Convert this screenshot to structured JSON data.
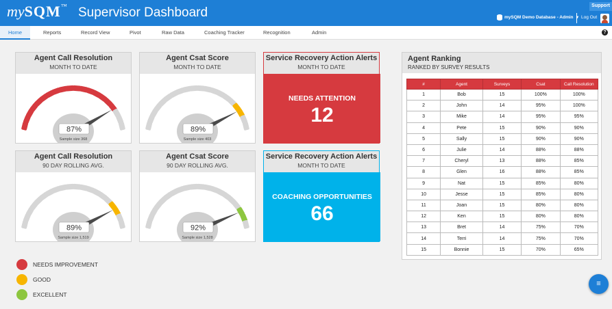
{
  "header": {
    "logo": "mySQM",
    "title": "Supervisor Dashboard",
    "support": "Support",
    "database": "mySQM Demo Database - Admin",
    "logout": "Log Out"
  },
  "nav": [
    "Home",
    "Reports",
    "Record View",
    "Pivot",
    "Raw Data",
    "Coaching Tracker",
    "Recognition",
    "Admin"
  ],
  "colors": {
    "needs_improvement": "#d63a3f",
    "good": "#f7b500",
    "excellent": "#8dc63f",
    "inactive": "#d6d6d6",
    "alert_red": "#d63a3f",
    "alert_blue": "#00b2ea",
    "brand_blue": "#1e7fd6"
  },
  "gauges": [
    {
      "title": "Agent Call Resolution",
      "subtitle": "MONTH TO DATE",
      "value": 87,
      "display": "87%",
      "sample": "Sample size 368",
      "color": "needs_improvement"
    },
    {
      "title": "Agent Csat Score",
      "subtitle": "MONTH TO DATE",
      "value": 89,
      "display": "89%",
      "sample": "Sample size 403",
      "color": "good"
    },
    {
      "title": "Agent Call Resolution",
      "subtitle": "90 DAY ROLLING AVG.",
      "value": 89,
      "display": "89%",
      "sample": "Sample size 1,519",
      "color": "good"
    },
    {
      "title": "Agent Csat Score",
      "subtitle": "90 DAY ROLLING AVG.",
      "value": 92,
      "display": "92%",
      "sample": "Sample size 1,528",
      "color": "excellent"
    }
  ],
  "alerts": [
    {
      "title": "Service Recovery Action Alerts",
      "subtitle": "MONTH TO DATE",
      "label": "NEEDS ATTENTION",
      "value": "12"
    },
    {
      "title": "Service Recovery Action Alerts",
      "subtitle": "MONTH TO DATE",
      "label": "COACHING OPPORTUNITIES",
      "value": "66"
    }
  ],
  "legend": [
    "NEEDS IMPROVEMENT",
    "GOOD",
    "EXCELLENT"
  ],
  "ranking": {
    "title": "Agent Ranking",
    "subtitle": "RANKED BY SURVEY RESULTS",
    "columns": [
      "#",
      "Agent",
      "Surveys",
      "Csat",
      "Call Resolution"
    ],
    "rows": [
      [
        "1",
        "Bob",
        "15",
        "100%",
        "100%"
      ],
      [
        "2",
        "John",
        "14",
        "95%",
        "100%"
      ],
      [
        "3",
        "Mike",
        "14",
        "95%",
        "95%"
      ],
      [
        "4",
        "Pete",
        "15",
        "90%",
        "90%"
      ],
      [
        "5",
        "Sally",
        "15",
        "90%",
        "90%"
      ],
      [
        "6",
        "Julie",
        "14",
        "88%",
        "88%"
      ],
      [
        "7",
        "Cheryl",
        "13",
        "88%",
        "85%"
      ],
      [
        "8",
        "Glen",
        "16",
        "88%",
        "85%"
      ],
      [
        "9",
        "Nat",
        "15",
        "85%",
        "80%"
      ],
      [
        "10",
        "Jesse",
        "15",
        "85%",
        "80%"
      ],
      [
        "11",
        "Joan",
        "15",
        "80%",
        "80%"
      ],
      [
        "12",
        "Ken",
        "15",
        "80%",
        "80%"
      ],
      [
        "13",
        "Bret",
        "14",
        "75%",
        "70%"
      ],
      [
        "14",
        "Terri",
        "14",
        "75%",
        "70%"
      ],
      [
        "15",
        "Bonnie",
        "15",
        "70%",
        "65%"
      ]
    ]
  },
  "icons": {
    "fab": "menu-icon",
    "help": "help-icon",
    "database": "database-icon",
    "user": "avatar"
  }
}
